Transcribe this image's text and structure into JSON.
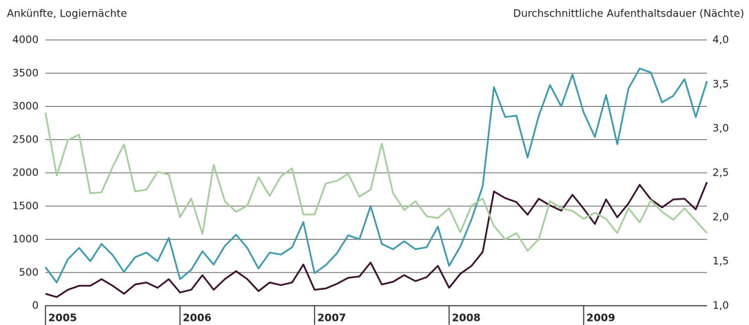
{
  "chart_data": {
    "type": "line",
    "y_label": "Ankünfte, Logiernächte",
    "y2_label": "Durchschnittliche Aufenthaltsdauer (Nächte)",
    "categories": [
      "2005",
      null,
      null,
      null,
      null,
      null,
      null,
      null,
      null,
      null,
      null,
      null,
      "2006",
      null,
      null,
      null,
      null,
      null,
      null,
      null,
      null,
      null,
      null,
      null,
      "2007",
      null,
      null,
      null,
      null,
      null,
      null,
      null,
      null,
      null,
      null,
      null,
      "2008",
      null,
      null,
      null,
      null,
      null,
      null,
      null,
      null,
      null,
      null,
      null,
      "2009",
      null,
      null,
      null,
      null,
      null,
      null,
      null,
      null,
      null,
      null,
      null
    ],
    "ylim": [
      0,
      4000
    ],
    "yticks": [
      0,
      500,
      1000,
      1500,
      2000,
      2500,
      3000,
      3500,
      4000
    ],
    "y2lim": [
      1,
      4
    ],
    "y2ticks": [
      {
        "value": 1,
        "label": "1,0"
      },
      {
        "value": 1.5,
        "label": "1,5"
      },
      {
        "value": 2,
        "label": "2,0"
      },
      {
        "value": 2.5,
        "label": "2,5"
      },
      {
        "value": 3,
        "label": "3,0"
      },
      {
        "value": 3.5,
        "label": "3,5"
      },
      {
        "value": 4,
        "label": "4,0"
      }
    ],
    "grid": true,
    "series": [
      {
        "color": "#3a9ab0",
        "values": [
          580,
          350,
          700,
          870,
          670,
          930,
          760,
          510,
          730,
          800,
          670,
          1020,
          400,
          540,
          820,
          620,
          900,
          1070,
          870,
          560,
          800,
          770,
          880,
          1260,
          490,
          610,
          790,
          1060,
          1000,
          1500,
          930,
          850,
          970,
          850,
          880,
          1190,
          600,
          890,
          1300,
          1800,
          3290,
          2840,
          2860,
          2230,
          2860,
          3320,
          3000,
          3480,
          2910,
          2540,
          3170,
          2430,
          3270,
          3570,
          3510,
          3060,
          3160,
          3410,
          2840,
          3380
        ]
      },
      {
        "color": "#3d0f2e",
        "values": [
          180,
          130,
          240,
          300,
          300,
          400,
          300,
          180,
          320,
          350,
          270,
          400,
          200,
          240,
          460,
          240,
          400,
          520,
          400,
          220,
          350,
          310,
          350,
          620,
          240,
          260,
          330,
          420,
          440,
          650,
          320,
          360,
          460,
          370,
          430,
          600,
          270,
          480,
          600,
          810,
          1720,
          1620,
          1560,
          1370,
          1610,
          1510,
          1430,
          1670,
          1460,
          1230,
          1600,
          1330,
          1540,
          1820,
          1600,
          1480,
          1600,
          1610,
          1450,
          1860
        ]
      },
      {
        "color": "#a4cf9a",
        "axis": "y2",
        "values": [
          3.18,
          2.47,
          2.87,
          2.93,
          2.27,
          2.28,
          2.57,
          2.82,
          2.29,
          2.31,
          2.51,
          2.48,
          2.0,
          2.21,
          1.81,
          2.59,
          2.18,
          2.06,
          2.13,
          2.45,
          2.24,
          2.46,
          2.55,
          2.03,
          2.03,
          2.38,
          2.41,
          2.49,
          2.23,
          2.31,
          2.83,
          2.27,
          2.08,
          2.18,
          2.01,
          1.99,
          2.1,
          1.83,
          2.13,
          2.21,
          1.9,
          1.75,
          1.82,
          1.62,
          1.75,
          2.18,
          2.1,
          2.07,
          1.98,
          2.05,
          1.98,
          1.82,
          2.1,
          1.94,
          2.19,
          2.06,
          1.97,
          2.1,
          1.96,
          1.82
        ]
      }
    ]
  }
}
